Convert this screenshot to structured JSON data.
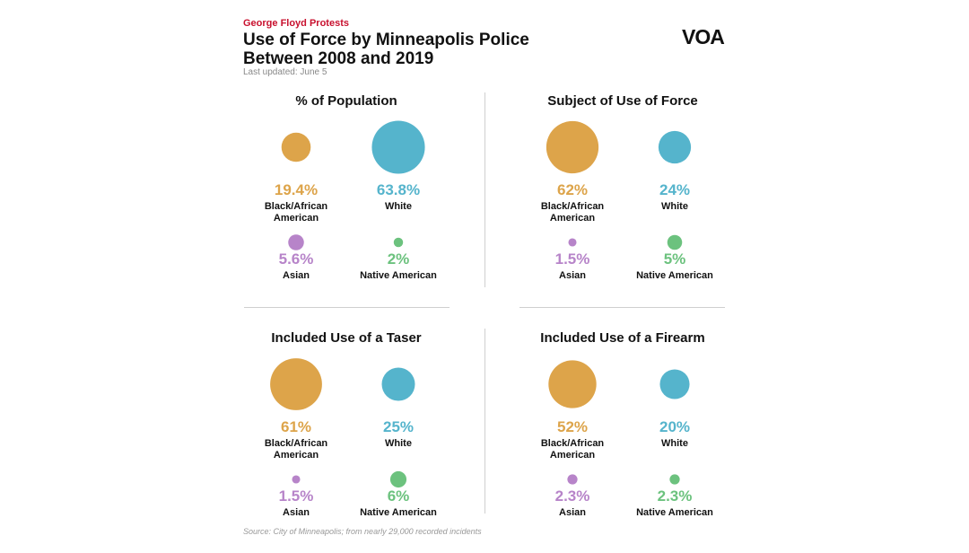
{
  "header": {
    "kicker": "George Floyd Protests",
    "title_line1": "Use of Force by Minneapolis Police",
    "title_line2": "Between 2008 and 2019",
    "updated": "Last updated: June 5",
    "logo": "VOA"
  },
  "footer": {
    "source": "Source: City of Minneapolis; from nearly 29,000 recorded incidents"
  },
  "colors": {
    "black_african_american": "#dda44a",
    "white": "#55b4cc",
    "asian": "#b784c9",
    "native_american": "#6cc27e"
  },
  "chart_data": [
    {
      "type": "bubble",
      "title": "% of Population",
      "categories": [
        "Black/African American",
        "White",
        "Asian",
        "Native American"
      ],
      "values": [
        19.4,
        63.8,
        5.6,
        2
      ],
      "labels": [
        "19.4%",
        "63.8%",
        "5.6%",
        "2%"
      ],
      "category_lines": [
        [
          "Black/African",
          "American"
        ],
        [
          "White"
        ],
        [
          "Asian"
        ],
        [
          "Native American"
        ]
      ]
    },
    {
      "type": "bubble",
      "title": "Subject of Use of Force",
      "categories": [
        "Black/African American",
        "White",
        "Asian",
        "Native American"
      ],
      "values": [
        62,
        24,
        1.5,
        5
      ],
      "labels": [
        "62%",
        "24%",
        "1.5%",
        "5%"
      ],
      "category_lines": [
        [
          "Black/African",
          "American"
        ],
        [
          "White"
        ],
        [
          "Asian"
        ],
        [
          "Native American"
        ]
      ]
    },
    {
      "type": "bubble",
      "title": "Included Use of a Taser",
      "categories": [
        "Black/African American",
        "White",
        "Asian",
        "Native American"
      ],
      "values": [
        61,
        25,
        1.5,
        6
      ],
      "labels": [
        "61%",
        "25%",
        "1.5%",
        "6%"
      ],
      "category_lines": [
        [
          "Black/African",
          "American"
        ],
        [
          "White"
        ],
        [
          "Asian"
        ],
        [
          "Native American"
        ]
      ]
    },
    {
      "type": "bubble",
      "title": "Included Use of a Firearm",
      "categories": [
        "Black/African American",
        "White",
        "Asian",
        "Native American"
      ],
      "values": [
        52,
        20,
        2.3,
        2.3
      ],
      "labels": [
        "52%",
        "20%",
        "2.3%",
        "2.3%"
      ],
      "category_lines": [
        [
          "Black/African",
          "American"
        ],
        [
          "White"
        ],
        [
          "Asian"
        ],
        [
          "Native American"
        ]
      ]
    }
  ]
}
